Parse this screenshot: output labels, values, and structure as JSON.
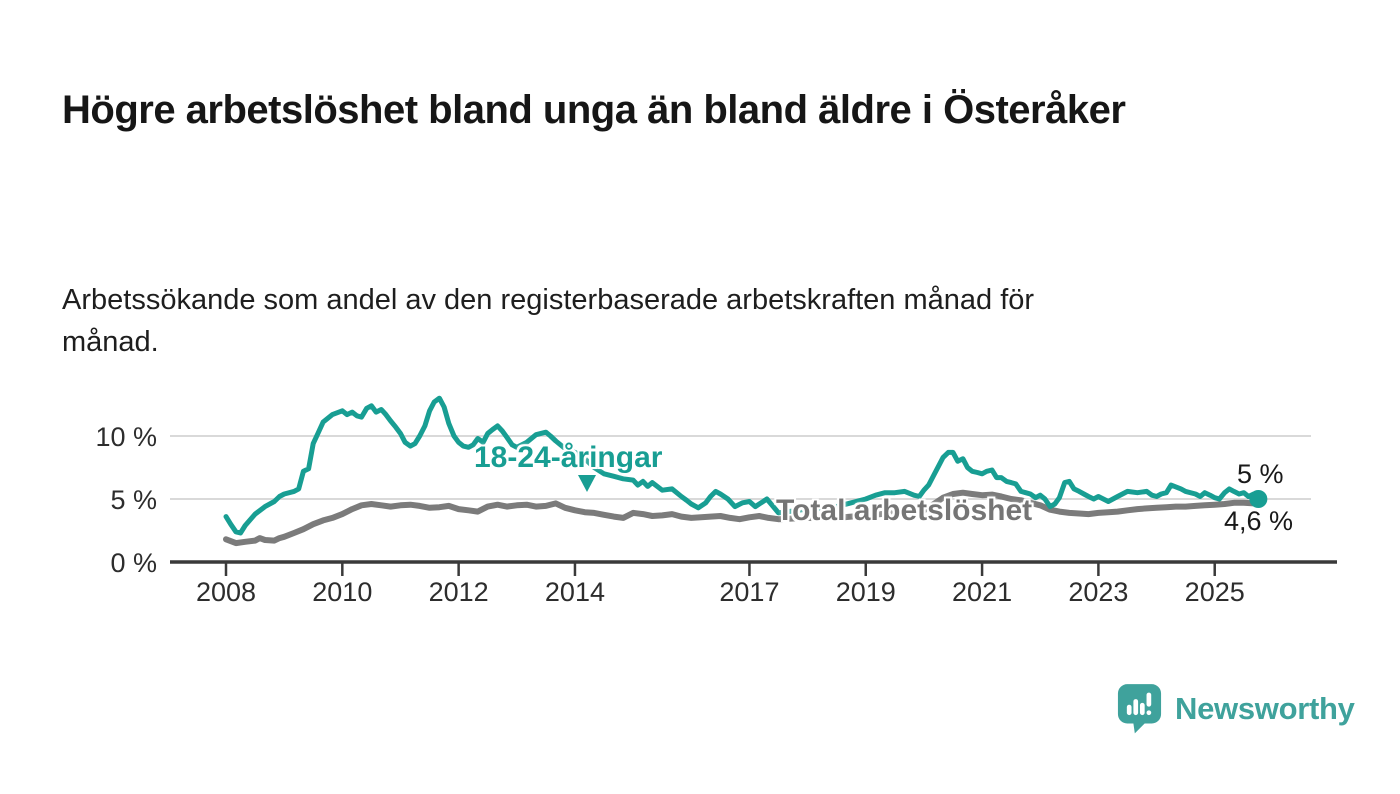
{
  "header": {
    "title": "Högre arbetslöshet bland unga än bland äldre i Österåker",
    "subtitle": "Arbetssökande som andel av den registerbaserade arbetskraften månad för månad."
  },
  "style": {
    "accent_teal": "#189e93",
    "line_gray": "#7b7b7b",
    "label_gray": "#757575",
    "gridline_color": "#d9d9d9",
    "axis_color": "#3a3a3a",
    "text_dark": "#161616",
    "brand_teal": "#3fa29c"
  },
  "annotations": {
    "young_series_label": "18-24-åringar",
    "total_series_label": "Total arbetslöshet",
    "young_end_value": "5 %",
    "total_end_value": "4,6 %"
  },
  "branding": {
    "name": "Newsworthy",
    "logo_icon": "bar-chart-speech-bubble-icon"
  },
  "chart_data": {
    "type": "line",
    "title": "Högre arbetslöshet bland unga än bland äldre i Österåker",
    "subtitle": "Arbetssökande som andel av den registerbaserade arbetskraften månad för månad.",
    "unit": "%",
    "grid": "horizontal",
    "legend_position": "inline-annotations",
    "x_axis": {
      "ticks": [
        2008,
        2010,
        2012,
        2014,
        2017,
        2019,
        2021,
        2023,
        2025
      ],
      "range": [
        2007.9,
        2026.2
      ]
    },
    "y_axis": {
      "ticks": [
        "0 %",
        "5 %",
        "10 %"
      ],
      "tick_values": [
        0,
        5,
        10
      ],
      "range": [
        0,
        13.5
      ]
    },
    "series": [
      {
        "name": "18-24-åringar",
        "color": "#189e93",
        "end_label": "5 %",
        "end_value": 5.0,
        "end_dot": true,
        "points": [
          [
            2008.0,
            3.6
          ],
          [
            2008.08,
            3.0
          ],
          [
            2008.17,
            2.4
          ],
          [
            2008.25,
            2.3
          ],
          [
            2008.33,
            2.9
          ],
          [
            2008.5,
            3.8
          ],
          [
            2008.67,
            4.4
          ],
          [
            2008.83,
            4.8
          ],
          [
            2008.92,
            5.2
          ],
          [
            2009.0,
            5.4
          ],
          [
            2009.17,
            5.6
          ],
          [
            2009.25,
            5.8
          ],
          [
            2009.33,
            7.2
          ],
          [
            2009.42,
            7.4
          ],
          [
            2009.5,
            9.4
          ],
          [
            2009.58,
            10.2
          ],
          [
            2009.67,
            11.1
          ],
          [
            2009.83,
            11.7
          ],
          [
            2010.0,
            12.0
          ],
          [
            2010.08,
            11.7
          ],
          [
            2010.17,
            11.9
          ],
          [
            2010.25,
            11.6
          ],
          [
            2010.33,
            11.5
          ],
          [
            2010.42,
            12.2
          ],
          [
            2010.5,
            12.4
          ],
          [
            2010.58,
            11.9
          ],
          [
            2010.67,
            12.1
          ],
          [
            2010.75,
            11.7
          ],
          [
            2010.83,
            11.2
          ],
          [
            2010.92,
            10.7
          ],
          [
            2011.0,
            10.2
          ],
          [
            2011.08,
            9.5
          ],
          [
            2011.17,
            9.2
          ],
          [
            2011.25,
            9.4
          ],
          [
            2011.33,
            10.0
          ],
          [
            2011.42,
            10.8
          ],
          [
            2011.5,
            12.0
          ],
          [
            2011.58,
            12.7
          ],
          [
            2011.67,
            13.0
          ],
          [
            2011.75,
            12.3
          ],
          [
            2011.83,
            11.0
          ],
          [
            2011.92,
            10.0
          ],
          [
            2012.0,
            9.5
          ],
          [
            2012.08,
            9.2
          ],
          [
            2012.17,
            9.1
          ],
          [
            2012.25,
            9.3
          ],
          [
            2012.33,
            9.8
          ],
          [
            2012.42,
            9.5
          ],
          [
            2012.5,
            10.2
          ],
          [
            2012.58,
            10.5
          ],
          [
            2012.67,
            10.8
          ],
          [
            2012.75,
            10.4
          ],
          [
            2012.83,
            9.9
          ],
          [
            2012.92,
            9.3
          ],
          [
            2013.0,
            9.1
          ],
          [
            2013.17,
            9.5
          ],
          [
            2013.33,
            10.1
          ],
          [
            2013.5,
            10.3
          ],
          [
            2013.58,
            10.0
          ],
          [
            2013.67,
            9.6
          ],
          [
            2013.83,
            9.0
          ],
          [
            2014.0,
            8.7
          ],
          [
            2014.17,
            8.2
          ],
          [
            2014.33,
            7.5
          ],
          [
            2014.5,
            7.0
          ],
          [
            2014.67,
            6.8
          ],
          [
            2014.83,
            6.6
          ],
          [
            2015.0,
            6.5
          ],
          [
            2015.08,
            6.1
          ],
          [
            2015.17,
            6.4
          ],
          [
            2015.25,
            6.0
          ],
          [
            2015.33,
            6.3
          ],
          [
            2015.5,
            5.7
          ],
          [
            2015.67,
            5.8
          ],
          [
            2015.83,
            5.2
          ],
          [
            2015.92,
            4.9
          ],
          [
            2016.0,
            4.6
          ],
          [
            2016.12,
            4.3
          ],
          [
            2016.25,
            4.7
          ],
          [
            2016.33,
            5.2
          ],
          [
            2016.42,
            5.6
          ],
          [
            2016.5,
            5.4
          ],
          [
            2016.63,
            5.0
          ],
          [
            2016.75,
            4.4
          ],
          [
            2016.88,
            4.7
          ],
          [
            2017.0,
            4.8
          ],
          [
            2017.1,
            4.4
          ],
          [
            2017.3,
            5.0
          ],
          [
            2017.5,
            3.9
          ],
          [
            2017.67,
            4.0
          ],
          [
            2017.83,
            4.1
          ],
          [
            2018.0,
            4.2
          ],
          [
            2018.25,
            4.3
          ],
          [
            2018.5,
            4.4
          ],
          [
            2018.75,
            4.7
          ],
          [
            2019.0,
            5.0
          ],
          [
            2019.17,
            5.3
          ],
          [
            2019.33,
            5.5
          ],
          [
            2019.5,
            5.5
          ],
          [
            2019.67,
            5.6
          ],
          [
            2019.83,
            5.3
          ],
          [
            2019.92,
            5.2
          ],
          [
            2020.0,
            5.7
          ],
          [
            2020.08,
            6.1
          ],
          [
            2020.17,
            6.9
          ],
          [
            2020.25,
            7.6
          ],
          [
            2020.33,
            8.3
          ],
          [
            2020.42,
            8.7
          ],
          [
            2020.5,
            8.7
          ],
          [
            2020.58,
            8.0
          ],
          [
            2020.67,
            8.2
          ],
          [
            2020.75,
            7.5
          ],
          [
            2020.83,
            7.2
          ],
          [
            2020.92,
            7.1
          ],
          [
            2021.0,
            7.0
          ],
          [
            2021.08,
            7.2
          ],
          [
            2021.17,
            7.3
          ],
          [
            2021.25,
            6.7
          ],
          [
            2021.33,
            6.7
          ],
          [
            2021.42,
            6.4
          ],
          [
            2021.5,
            6.3
          ],
          [
            2021.58,
            6.2
          ],
          [
            2021.67,
            5.6
          ],
          [
            2021.75,
            5.5
          ],
          [
            2021.83,
            5.4
          ],
          [
            2021.92,
            5.1
          ],
          [
            2022.0,
            5.3
          ],
          [
            2022.08,
            5.0
          ],
          [
            2022.17,
            4.4
          ],
          [
            2022.25,
            4.6
          ],
          [
            2022.33,
            5.1
          ],
          [
            2022.42,
            6.3
          ],
          [
            2022.5,
            6.4
          ],
          [
            2022.58,
            5.8
          ],
          [
            2022.67,
            5.6
          ],
          [
            2022.75,
            5.4
          ],
          [
            2022.83,
            5.2
          ],
          [
            2022.92,
            5.0
          ],
          [
            2023.0,
            5.2
          ],
          [
            2023.17,
            4.8
          ],
          [
            2023.33,
            5.2
          ],
          [
            2023.5,
            5.6
          ],
          [
            2023.67,
            5.5
          ],
          [
            2023.83,
            5.6
          ],
          [
            2023.92,
            5.3
          ],
          [
            2024.0,
            5.2
          ],
          [
            2024.08,
            5.4
          ],
          [
            2024.17,
            5.5
          ],
          [
            2024.25,
            6.1
          ],
          [
            2024.42,
            5.8
          ],
          [
            2024.5,
            5.6
          ],
          [
            2024.67,
            5.4
          ],
          [
            2024.75,
            5.2
          ],
          [
            2024.83,
            5.5
          ],
          [
            2024.92,
            5.3
          ],
          [
            2025.0,
            5.1
          ],
          [
            2025.08,
            5.0
          ],
          [
            2025.17,
            5.5
          ],
          [
            2025.25,
            5.8
          ],
          [
            2025.33,
            5.6
          ],
          [
            2025.42,
            5.4
          ],
          [
            2025.5,
            5.5
          ],
          [
            2025.58,
            5.2
          ],
          [
            2025.67,
            5.4
          ],
          [
            2025.75,
            5.0
          ]
        ]
      },
      {
        "name": "Total arbetslöshet",
        "color": "#7b7b7b",
        "end_label": "4,6 %",
        "end_value": 4.6,
        "end_dot": false,
        "points": [
          [
            2008.0,
            1.8
          ],
          [
            2008.17,
            1.5
          ],
          [
            2008.33,
            1.6
          ],
          [
            2008.5,
            1.7
          ],
          [
            2008.58,
            1.9
          ],
          [
            2008.67,
            1.75
          ],
          [
            2008.83,
            1.7
          ],
          [
            2008.92,
            1.9
          ],
          [
            2009.0,
            2.0
          ],
          [
            2009.17,
            2.3
          ],
          [
            2009.33,
            2.6
          ],
          [
            2009.5,
            3.0
          ],
          [
            2009.67,
            3.3
          ],
          [
            2009.83,
            3.5
          ],
          [
            2010.0,
            3.8
          ],
          [
            2010.17,
            4.2
          ],
          [
            2010.33,
            4.5
          ],
          [
            2010.5,
            4.6
          ],
          [
            2010.67,
            4.5
          ],
          [
            2010.83,
            4.4
          ],
          [
            2011.0,
            4.5
          ],
          [
            2011.17,
            4.55
          ],
          [
            2011.33,
            4.45
          ],
          [
            2011.5,
            4.3
          ],
          [
            2011.67,
            4.35
          ],
          [
            2011.83,
            4.45
          ],
          [
            2012.0,
            4.2
          ],
          [
            2012.17,
            4.1
          ],
          [
            2012.33,
            4.0
          ],
          [
            2012.5,
            4.4
          ],
          [
            2012.67,
            4.55
          ],
          [
            2012.83,
            4.4
          ],
          [
            2013.0,
            4.5
          ],
          [
            2013.17,
            4.55
          ],
          [
            2013.33,
            4.4
          ],
          [
            2013.5,
            4.45
          ],
          [
            2013.67,
            4.65
          ],
          [
            2013.83,
            4.3
          ],
          [
            2014.0,
            4.1
          ],
          [
            2014.17,
            3.95
          ],
          [
            2014.33,
            3.9
          ],
          [
            2014.5,
            3.75
          ],
          [
            2014.67,
            3.6
          ],
          [
            2014.83,
            3.5
          ],
          [
            2015.0,
            3.9
          ],
          [
            2015.17,
            3.8
          ],
          [
            2015.33,
            3.65
          ],
          [
            2015.5,
            3.7
          ],
          [
            2015.67,
            3.8
          ],
          [
            2015.83,
            3.6
          ],
          [
            2016.0,
            3.5
          ],
          [
            2016.17,
            3.55
          ],
          [
            2016.33,
            3.6
          ],
          [
            2016.5,
            3.65
          ],
          [
            2016.67,
            3.5
          ],
          [
            2016.83,
            3.4
          ],
          [
            2017.0,
            3.55
          ],
          [
            2017.17,
            3.65
          ],
          [
            2017.33,
            3.5
          ],
          [
            2017.5,
            3.4
          ],
          [
            2017.75,
            3.45
          ],
          [
            2018.0,
            3.5
          ],
          [
            2018.25,
            3.45
          ],
          [
            2018.5,
            3.5
          ],
          [
            2018.75,
            3.6
          ],
          [
            2019.0,
            3.7
          ],
          [
            2019.25,
            3.8
          ],
          [
            2019.5,
            3.9
          ],
          [
            2019.75,
            4.0
          ],
          [
            2020.0,
            4.1
          ],
          [
            2020.17,
            4.6
          ],
          [
            2020.33,
            5.1
          ],
          [
            2020.5,
            5.4
          ],
          [
            2020.67,
            5.5
          ],
          [
            2020.83,
            5.4
          ],
          [
            2021.0,
            5.3
          ],
          [
            2021.17,
            5.35
          ],
          [
            2021.33,
            5.2
          ],
          [
            2021.5,
            5.0
          ],
          [
            2021.67,
            4.9
          ],
          [
            2021.83,
            4.7
          ],
          [
            2022.0,
            4.5
          ],
          [
            2022.17,
            4.15
          ],
          [
            2022.33,
            4.0
          ],
          [
            2022.5,
            3.9
          ],
          [
            2022.67,
            3.85
          ],
          [
            2022.83,
            3.8
          ],
          [
            2023.0,
            3.9
          ],
          [
            2023.17,
            3.95
          ],
          [
            2023.33,
            4.0
          ],
          [
            2023.5,
            4.1
          ],
          [
            2023.67,
            4.2
          ],
          [
            2023.83,
            4.25
          ],
          [
            2024.0,
            4.3
          ],
          [
            2024.17,
            4.35
          ],
          [
            2024.33,
            4.4
          ],
          [
            2024.5,
            4.4
          ],
          [
            2024.67,
            4.45
          ],
          [
            2024.83,
            4.5
          ],
          [
            2025.0,
            4.55
          ],
          [
            2025.17,
            4.6
          ],
          [
            2025.33,
            4.7
          ],
          [
            2025.5,
            4.7
          ],
          [
            2025.67,
            4.65
          ],
          [
            2025.75,
            4.6
          ]
        ]
      }
    ]
  }
}
